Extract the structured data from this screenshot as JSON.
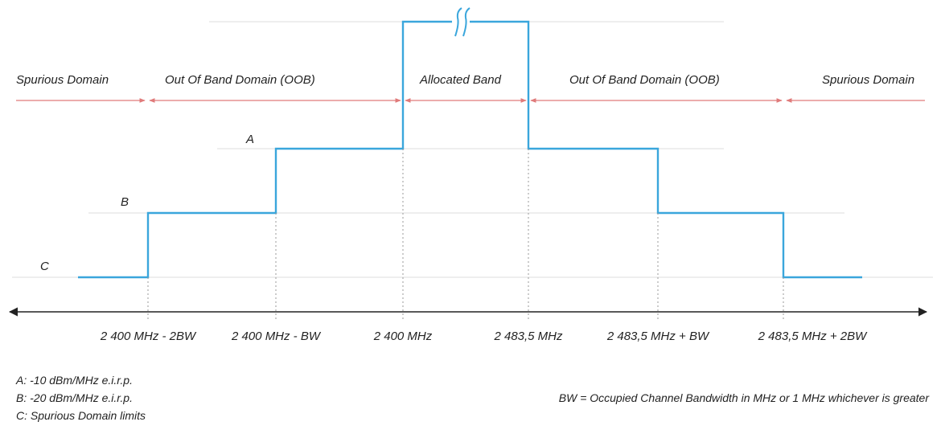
{
  "diagram": {
    "domains": [
      "Spurious Domain",
      "Out Of Band Domain (OOB)",
      "Allocated Band",
      "Out Of Band Domain (OOB)",
      "Spurious Domain"
    ],
    "level_labels": {
      "a": "A",
      "b": "B",
      "c": "C"
    },
    "ticks": [
      "2 400 MHz - 2BW",
      "2 400 MHz - BW",
      "2 400 MHz",
      "2 483,5 MHz",
      "2 483,5 MHz + BW",
      "2 483,5 MHz + 2BW"
    ],
    "legend": [
      "A:  -10 dBm/MHz e.i.r.p.",
      "B:  -20 dBm/MHz e.i.r.p.",
      "C:  Spurious Domain limits"
    ],
    "bw_note": "BW = Occupied Channel Bandwidth in MHz or 1 MHz whichever is greater",
    "colors": {
      "mask": "#3aa6dc",
      "domain_arrow": "#e07a7a",
      "grid": "#dddddd",
      "axis": "#222222"
    }
  }
}
